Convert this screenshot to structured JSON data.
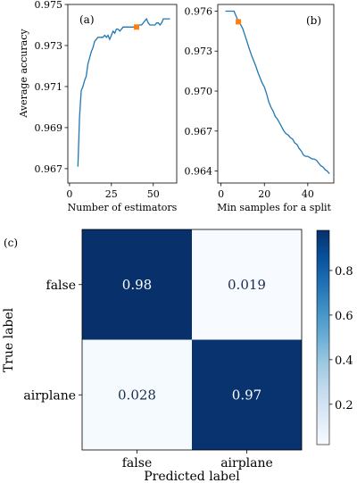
{
  "chart_data": [
    {
      "panel_label": "(a)",
      "type": "line",
      "xlabel": "Number of estimators",
      "ylabel": "Average accuracy",
      "xlim": [
        -1,
        64
      ],
      "ylim": [
        0.9663,
        0.975
      ],
      "xticks": [
        0,
        25,
        50
      ],
      "yticks": [
        0.967,
        0.969,
        0.971,
        0.973,
        0.975
      ],
      "ytick_labels": [
        "0.967",
        "0.969",
        "0.971",
        "0.973",
        "0.975"
      ],
      "series": [
        {
          "color": "#1f77b4",
          "x": [
            5,
            6,
            7,
            8,
            9,
            10,
            11,
            12,
            13,
            14,
            15,
            16,
            17,
            18,
            19,
            20,
            21,
            22,
            23,
            24,
            25,
            26,
            27,
            28,
            29,
            30,
            31,
            32,
            33,
            34,
            35,
            36,
            37,
            38,
            39,
            40,
            41,
            42,
            43,
            44,
            45,
            46,
            47,
            48,
            49,
            50,
            51,
            52,
            53,
            54,
            55,
            56,
            57,
            58,
            59,
            60
          ],
          "y": [
            0.9671,
            0.9695,
            0.9708,
            0.971,
            0.9713,
            0.9715,
            0.9721,
            0.9724,
            0.9727,
            0.9729,
            0.9732,
            0.9733,
            0.9734,
            0.9734,
            0.9734,
            0.9734,
            0.9735,
            0.9734,
            0.9735,
            0.9733,
            0.9735,
            0.9737,
            0.9736,
            0.9738,
            0.9738,
            0.9737,
            0.9738,
            0.9739,
            0.9739,
            0.9739,
            0.9739,
            0.9739,
            0.9739,
            0.9739,
            0.9739,
            0.9739,
            0.974,
            0.974,
            0.974,
            0.9741,
            0.9742,
            0.9743,
            0.9741,
            0.974,
            0.974,
            0.974,
            0.974,
            0.9741,
            0.9741,
            0.974,
            0.9741,
            0.9743,
            0.9743,
            0.9743,
            0.9743,
            0.9743
          ]
        }
      ],
      "highlight": {
        "x": 40,
        "y": 0.9739,
        "color": "#ff7f0e"
      }
    },
    {
      "panel_label": "(b)",
      "type": "line",
      "xlabel": "Min samples for a split",
      "ylabel": "",
      "xlim": [
        -1.5,
        52
      ],
      "ylim": [
        0.9631,
        0.9765
      ],
      "xticks": [
        0,
        20,
        40
      ],
      "yticks": [
        0.964,
        0.967,
        0.97,
        0.973,
        0.976
      ],
      "ytick_labels": [
        "0.964",
        "0.967",
        "0.970",
        "0.973",
        "0.976"
      ],
      "series": [
        {
          "color": "#1f77b4",
          "x": [
            2,
            3,
            4,
            5,
            6,
            7,
            8,
            9,
            10,
            11,
            12,
            13,
            14,
            15,
            16,
            17,
            18,
            19,
            20,
            21,
            22,
            23,
            24,
            25,
            26,
            27,
            28,
            29,
            30,
            31,
            32,
            33,
            34,
            35,
            36,
            37,
            38,
            39,
            40,
            41,
            42,
            43,
            44,
            45,
            46,
            47,
            48,
            49,
            50
          ],
          "y": [
            0.976,
            0.976,
            0.976,
            0.976,
            0.976,
            0.9756,
            0.9752,
            0.975,
            0.9747,
            0.9742,
            0.9737,
            0.9732,
            0.9727,
            0.9723,
            0.9719,
            0.9714,
            0.971,
            0.9706,
            0.9703,
            0.9698,
            0.9692,
            0.9688,
            0.9685,
            0.9681,
            0.9679,
            0.9676,
            0.9673,
            0.967,
            0.9668,
            0.9667,
            0.9665,
            0.9664,
            0.9661,
            0.966,
            0.9657,
            0.9655,
            0.9652,
            0.9651,
            0.9651,
            0.965,
            0.9649,
            0.9649,
            0.9648,
            0.9646,
            0.9644,
            0.9643,
            0.9641,
            0.964,
            0.9638
          ]
        }
      ],
      "highlight": {
        "x": 8,
        "y": 0.9752,
        "color": "#ff7f0e"
      }
    },
    {
      "panel_label": "(c)",
      "type": "heatmap",
      "xlabel": "Predicted label",
      "ylabel": "True label",
      "x_categories": [
        "false",
        "airplane"
      ],
      "y_categories": [
        "false",
        "airplane"
      ],
      "values": [
        [
          0.98,
          0.019
        ],
        [
          0.028,
          0.97
        ]
      ],
      "value_labels": [
        [
          "0.98",
          "0.019"
        ],
        [
          "0.028",
          "0.97"
        ]
      ],
      "vmin": 0.019,
      "vmax": 0.98,
      "colormap": "Blues",
      "colorbar_ticks": [
        0.2,
        0.4,
        0.6,
        0.8
      ],
      "colorbar_tick_labels": [
        "0.2",
        "0.4",
        "0.6",
        "0.8"
      ],
      "text_colors": {
        "on_dark": "#ffffff",
        "on_light": "#1b2d4f"
      }
    }
  ]
}
